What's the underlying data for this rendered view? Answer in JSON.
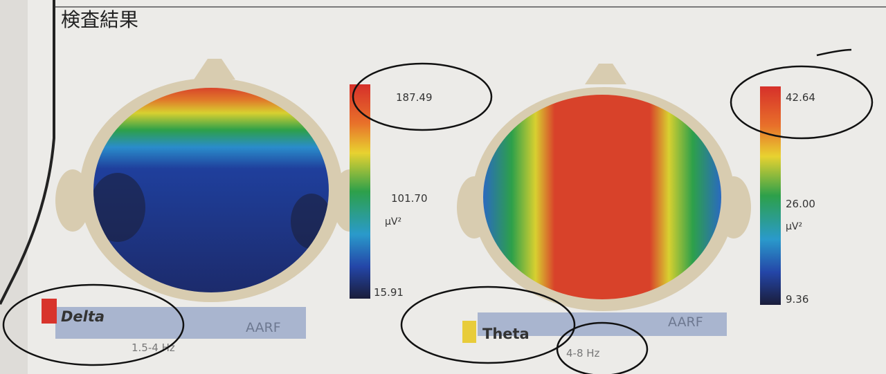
{
  "header": {
    "title": "検査結果"
  },
  "panels": [
    {
      "band": "Delta",
      "range": "1.5-4 Hz",
      "method": "AARF",
      "max": "187.49",
      "mid": "101.70",
      "min": "15.91",
      "unit": "µV²"
    },
    {
      "band": "Theta",
      "range": "4-8 Hz",
      "method": "AARF",
      "max": "42.64",
      "mid": "26.00",
      "min": "9.36",
      "unit": "µV²"
    }
  ]
}
